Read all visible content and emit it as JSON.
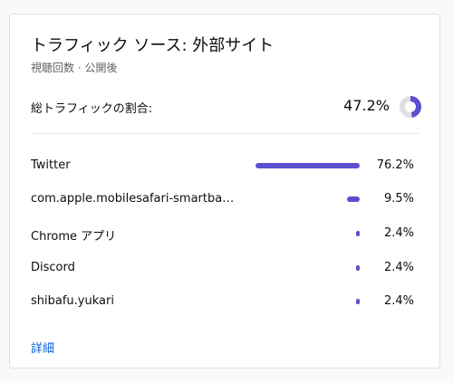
{
  "card": {
    "title": "トラフィック ソース: 外部サイト",
    "subtitle": "視聴回数 · 公開後"
  },
  "summary": {
    "label": "総トラフィックの割合:",
    "value_text": "47.2%",
    "value": 47.2,
    "donut_color": "#5b4fcf",
    "donut_track_color": "#e0e0e0"
  },
  "sources": [
    {
      "label": "Twitter",
      "value_text": "76.2%",
      "value": 76.2
    },
    {
      "label": "com.apple.mobilesafari-smartbanner",
      "value_text": "9.5%",
      "value": 9.5
    },
    {
      "label": "Chrome アプリ",
      "value_text": "2.4%",
      "value": 2.4
    },
    {
      "label": "Discord",
      "value_text": "2.4%",
      "value": 2.4
    },
    {
      "label": "shibafu.yukari",
      "value_text": "2.4%",
      "value": 2.4
    }
  ],
  "bar_color": "#5b4fcf",
  "details_link": "詳細"
}
